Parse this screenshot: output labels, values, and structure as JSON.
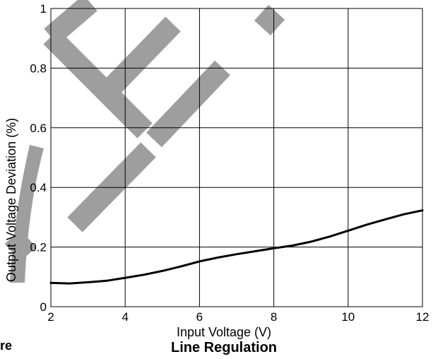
{
  "chart_data": {
    "type": "line",
    "title": "Line Regulation",
    "xlabel": "Input Voltage (V)",
    "ylabel": "Output Voltage Deviation (%)",
    "xlim": [
      2,
      12
    ],
    "ylim": [
      0,
      1
    ],
    "x_ticks": [
      "2",
      "4",
      "6",
      "8",
      "10",
      "12"
    ],
    "y_ticks": [
      "0",
      "0.2",
      "0.4",
      "0.6",
      "0.8",
      "1"
    ],
    "grid": true,
    "series": [
      {
        "x": [
          2,
          2.5,
          3,
          3.5,
          4,
          4.5,
          5,
          5.5,
          6,
          6.5,
          7,
          7.5,
          8,
          8.5,
          9,
          9.5,
          10,
          10.5,
          11,
          11.5,
          12
        ],
        "y": [
          0.08,
          0.078,
          0.082,
          0.087,
          0.097,
          0.107,
          0.12,
          0.135,
          0.152,
          0.165,
          0.176,
          0.186,
          0.196,
          0.205,
          0.218,
          0.235,
          0.255,
          0.275,
          0.293,
          0.31,
          0.323
        ]
      }
    ],
    "line_color": "#000000",
    "watermark_color": "#9e9e9e"
  },
  "fragments": {
    "left_caption_tail": "re"
  }
}
